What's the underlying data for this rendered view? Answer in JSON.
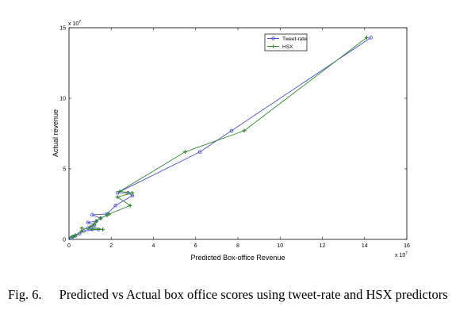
{
  "chart_data": {
    "type": "line",
    "xlabel": "Predicted Box-office Revenue",
    "ylabel": "Actual revenue",
    "x_exponent": "x 10",
    "x_exponent_power": "7",
    "y_exponent": "x 10",
    "y_exponent_power": "7",
    "xlim": [
      0,
      15
    ],
    "ylim": [
      0,
      15
    ],
    "x_ticks": [
      0,
      2,
      4,
      6,
      8,
      10,
      12,
      14,
      16
    ],
    "y_ticks": [
      0,
      5,
      10,
      15
    ],
    "grid": false,
    "legend_position": "top-right",
    "series": [
      {
        "name": "Tweet-rate",
        "color": "#4f4fd6",
        "marker": "circle",
        "points": [
          [
            14.3,
            14.3
          ],
          [
            7.7,
            7.7
          ],
          [
            6.2,
            6.2
          ],
          [
            2.3,
            3.3
          ],
          [
            2.8,
            3.3
          ],
          [
            3.0,
            3.1
          ],
          [
            2.2,
            2.4
          ],
          [
            1.8,
            1.8
          ],
          [
            1.1,
            1.75
          ],
          [
            1.5,
            1.5
          ],
          [
            1.3,
            1.3
          ],
          [
            0.9,
            1.2
          ],
          [
            1.2,
            1.0
          ],
          [
            0.9,
            0.8
          ],
          [
            1.4,
            0.7
          ],
          [
            0.7,
            0.6
          ],
          [
            0.5,
            0.4
          ],
          [
            0.3,
            0.25
          ],
          [
            0.2,
            0.2
          ],
          [
            0.1,
            0.1
          ]
        ]
      },
      {
        "name": "HSX",
        "color": "#2e8b2e",
        "marker": "plus",
        "points": [
          [
            14.1,
            14.3
          ],
          [
            8.3,
            7.7
          ],
          [
            5.5,
            6.2
          ],
          [
            2.4,
            3.4
          ],
          [
            3.0,
            3.3
          ],
          [
            2.3,
            3.0
          ],
          [
            2.9,
            2.4
          ],
          [
            1.9,
            1.8
          ],
          [
            1.8,
            1.7
          ],
          [
            1.5,
            1.5
          ],
          [
            1.3,
            1.3
          ],
          [
            1.2,
            1.1
          ],
          [
            1.0,
            0.9
          ],
          [
            1.6,
            0.7
          ],
          [
            1.1,
            0.7
          ],
          [
            0.6,
            0.8
          ],
          [
            0.6,
            0.6
          ],
          [
            0.3,
            0.3
          ],
          [
            0.2,
            0.2
          ],
          [
            0.1,
            0.15
          ]
        ]
      }
    ]
  },
  "caption": {
    "label": "Fig. 6.",
    "text": "Predicted vs Actual box office scores using tweet-rate and HSX predictors"
  }
}
